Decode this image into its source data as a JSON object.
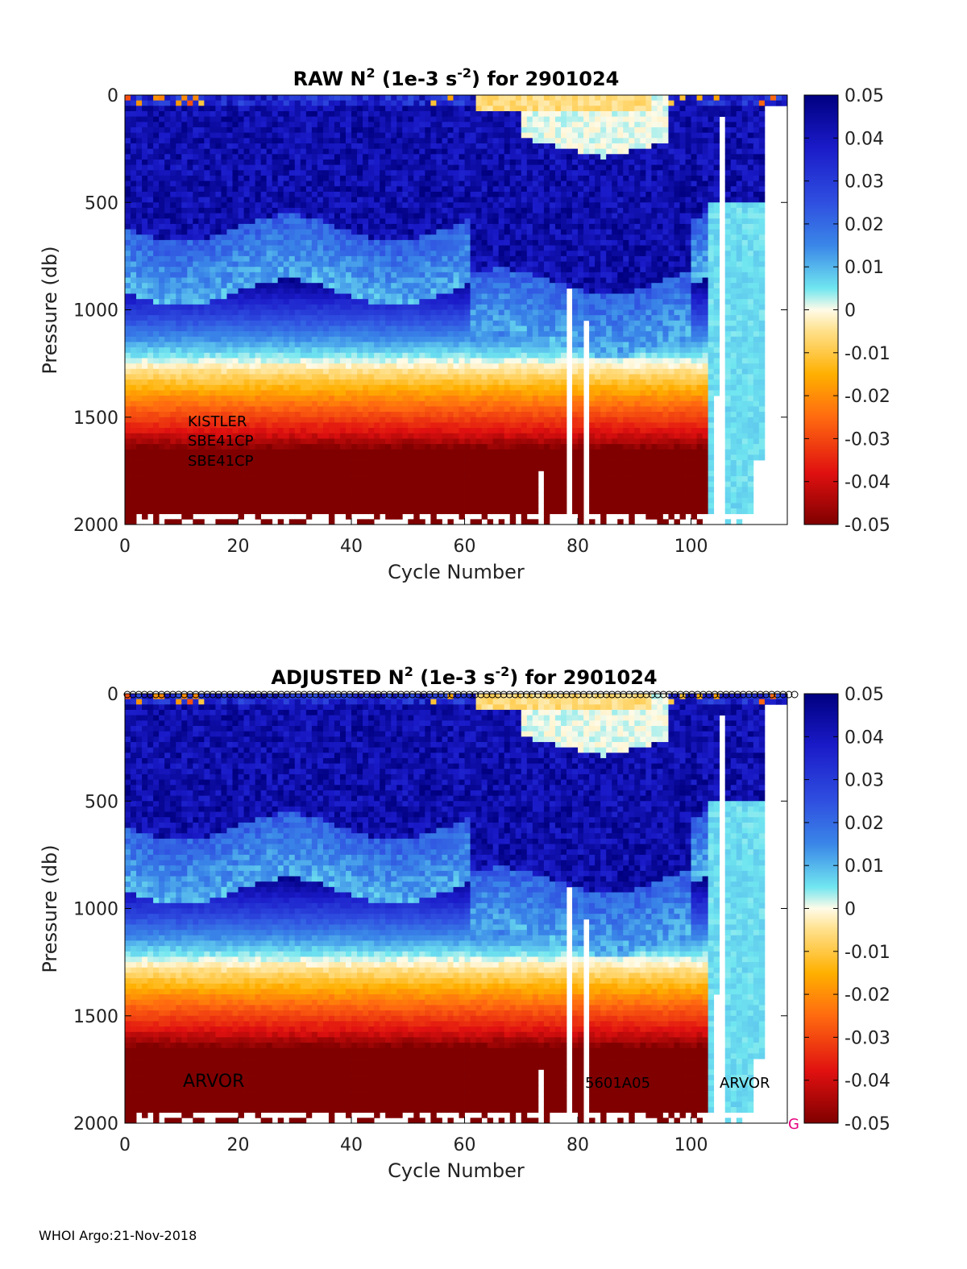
{
  "footer": "WHOI Argo:21-Nov-2018",
  "colorbar": {
    "ticks": [
      "0.05",
      "0.04",
      "0.03",
      "0.02",
      "0.01",
      "0",
      "-0.01",
      "-0.02",
      "-0.03",
      "-0.04",
      "-0.05"
    ],
    "range": [
      -0.05,
      0.05
    ]
  },
  "chart_data": [
    {
      "type": "heatmap",
      "title_main": "RAW N",
      "title_sup1": "2",
      "title_mid": " (1e-3 s",
      "title_sup2": "-2",
      "title_end": ") for 2901024",
      "xlabel": "Cycle Number",
      "ylabel": "Pressure (db)",
      "xlim": [
        0,
        117
      ],
      "ylim": [
        2000,
        0
      ],
      "xticks": [
        "0",
        "20",
        "40",
        "60",
        "80",
        "100"
      ],
      "yticks": [
        "0",
        "500",
        "1000",
        "1500",
        "2000"
      ],
      "clim": [
        -0.05,
        0.05
      ],
      "annotations": [
        "KISTLER",
        "SBE41CP",
        "SBE41CP"
      ],
      "sensor_label_style": "stacked",
      "quality_markers": false
    },
    {
      "type": "heatmap",
      "title_main": "ADJUSTED N",
      "title_sup1": "2",
      "title_mid": " (1e-3 s",
      "title_sup2": "-2",
      "title_end": ") for 2901024",
      "xlabel": "Cycle Number",
      "ylabel": "Pressure (db)",
      "xlim": [
        0,
        117
      ],
      "ylim": [
        2000,
        0
      ],
      "xticks": [
        "0",
        "20",
        "40",
        "60",
        "80",
        "100"
      ],
      "yticks": [
        "0",
        "500",
        "1000",
        "1500",
        "2000"
      ],
      "clim": [
        -0.05,
        0.05
      ],
      "annotations": [
        "ARVOR",
        "5601A05",
        "ARVOR"
      ],
      "sensor_label_style": "inline",
      "quality_markers": true,
      "quality_flag": "G",
      "quality_flag_color": "#e6007e"
    }
  ]
}
